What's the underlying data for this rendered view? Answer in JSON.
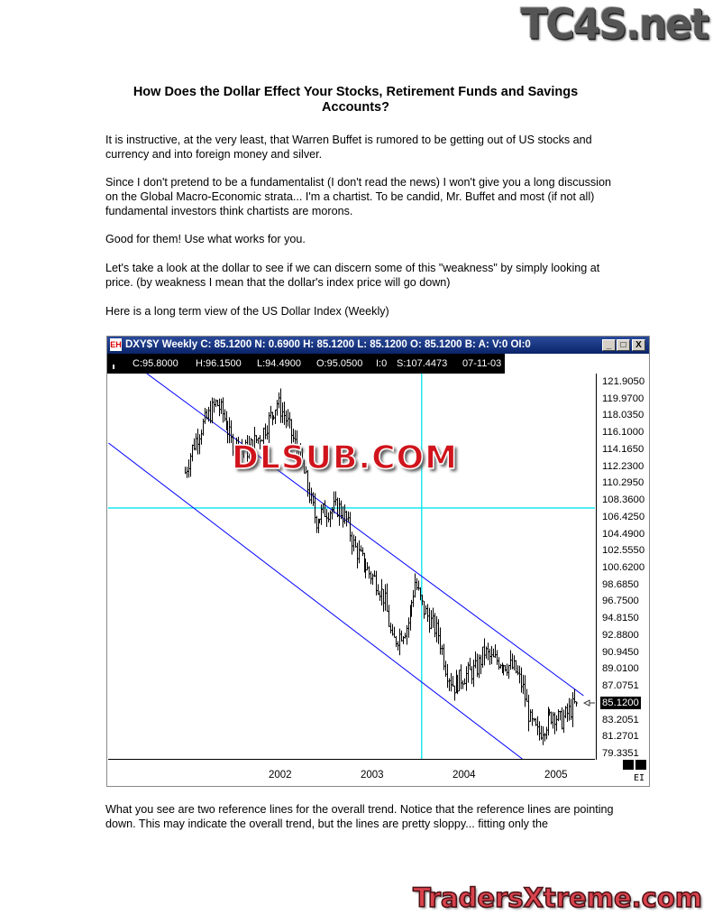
{
  "logos": {
    "top": "TC4S.net",
    "bottom": "TradersXtreme.com",
    "watermark": "DLSUB.COM"
  },
  "title": "How Does the Dollar Effect Your Stocks, Retirement Funds and Savings Accounts?",
  "paragraphs": [
    "It is instructive, at the very least, that Warren Buffet is rumored to be getting out of US stocks and currency and into foreign money and silver.",
    "Since I don't pretend to be a fundamentalist (I don't read the news) I won't give you a long discussion on the Global Macro-Economic strata... I'm a chartist. To be candid, Mr. Buffet and most (if not all) fundamental investors think chartists are morons.",
    "Good for them! Use what works for you.",
    "Let's take a look at the dollar to see if we can discern some of this \"weakness\" by simply looking at price. (by weakness I mean that the dollar's index price will go down)",
    "Here is a long term view of the US Dollar Index (Weekly)",
    "What you see are two reference lines for the overall trend. Notice that the reference lines are pointing down. This may indicate the overall trend, but the lines are pretty sloppy... fitting only the"
  ],
  "chart_window": {
    "title": "DXY$Y Weekly C:  85.1200 N:  0.6900 H:  85.1200 L:  85.1200 O:  85.1200 B: A: V:0 OI:0",
    "buttons": {
      "minimize": "_",
      "maximize": "□",
      "close": "X"
    },
    "app_icon": "EH",
    "info": [
      "C:95.8000",
      "H:96.1500",
      "L:94.4900",
      "O:95.0500",
      "I:0",
      "S:107.4473",
      "07-11-03"
    ],
    "corner_label": "EI",
    "colors": {
      "titlebar": "#0a246a",
      "channel": "#0000ff",
      "crosshair": "#00e5ee",
      "bars": "#000000"
    }
  },
  "chart_data": {
    "type": "bar",
    "subtype": "ohlc-weekly",
    "symbol": "DXY$Y",
    "y_ticks": [
      "121.9050",
      "119.9700",
      "118.0350",
      "116.1000",
      "114.1650",
      "112.2300",
      "110.2950",
      "108.3600",
      "106.4250",
      "104.4900",
      "102.5550",
      "100.6200",
      "98.6850",
      "96.7500",
      "94.8150",
      "92.8800",
      "90.9450",
      "89.0100",
      "87.0751",
      "85.1200",
      "83.2051",
      "81.2701",
      "79.3351"
    ],
    "last_price": "85.1200",
    "x_ticks": [
      "2002",
      "2003",
      "2004",
      "2005"
    ],
    "ylim": [
      79.3351,
      121.905
    ],
    "crosshair": {
      "date": "2003-07-11",
      "price": 107.4473
    },
    "approx_closes": [
      [
        "2000-12",
        111.5
      ],
      [
        "2001-01",
        114.5
      ],
      [
        "2001-02",
        116.5
      ],
      [
        "2001-04",
        119.5
      ],
      [
        "2001-05",
        118
      ],
      [
        "2001-06",
        115
      ],
      [
        "2001-08",
        114
      ],
      [
        "2001-10",
        116
      ],
      [
        "2001-12",
        119.5
      ],
      [
        "2002-01",
        118
      ],
      [
        "2002-03",
        113
      ],
      [
        "2002-05",
        106
      ],
      [
        "2002-06",
        107
      ],
      [
        "2002-08",
        107.5
      ],
      [
        "2002-09",
        106
      ],
      [
        "2002-10",
        103
      ],
      [
        "2002-12",
        100
      ],
      [
        "2003-01",
        99
      ],
      [
        "2003-02",
        97
      ],
      [
        "2003-03",
        92
      ],
      [
        "2003-05",
        94
      ],
      [
        "2003-06",
        99
      ],
      [
        "2003-07",
        96
      ],
      [
        "2003-09",
        93
      ],
      [
        "2003-10",
        89
      ],
      [
        "2003-11",
        87
      ],
      [
        "2003-12",
        88
      ],
      [
        "2004-02",
        89
      ],
      [
        "2004-03",
        91
      ],
      [
        "2004-04",
        90
      ],
      [
        "2004-05",
        90
      ],
      [
        "2004-07",
        89
      ],
      [
        "2004-08",
        87
      ],
      [
        "2004-09",
        83
      ],
      [
        "2004-10",
        81.5
      ],
      [
        "2004-12",
        84
      ],
      [
        "2005-01",
        83
      ],
      [
        "2005-03",
        85.12
      ]
    ],
    "trendlines": [
      {
        "from": [
          "2000-07",
          122.84
        ],
        "to": [
          "2005-04",
          85.95
        ]
      },
      {
        "from": [
          "2000-02",
          114.88
        ],
        "to": [
          "2004-08",
          78.71
        ]
      }
    ]
  }
}
